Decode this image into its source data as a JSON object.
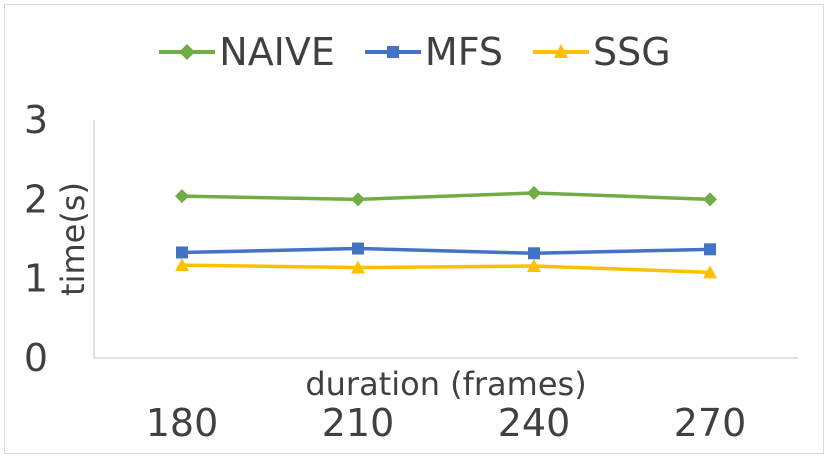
{
  "chart_data": {
    "type": "line",
    "categories": [
      "180",
      "210",
      "240",
      "270"
    ],
    "series": [
      {
        "name": "NAIVE",
        "values": [
          2.04,
          2.0,
          2.08,
          2.0
        ],
        "color": "#70ad47",
        "marker": "diamond"
      },
      {
        "name": "MFS",
        "values": [
          1.33,
          1.38,
          1.32,
          1.37
        ],
        "color": "#4472c4",
        "marker": "square"
      },
      {
        "name": "SSG",
        "values": [
          1.17,
          1.14,
          1.16,
          1.08
        ],
        "color": "#ffc000",
        "marker": "triangle"
      }
    ],
    "xlabel": "duration (frames)",
    "ylabel": "time(s)",
    "ylim": [
      0,
      3
    ],
    "yticks": [
      "0",
      "1",
      "2",
      "3"
    ],
    "grid": false,
    "legend_position": "top"
  }
}
